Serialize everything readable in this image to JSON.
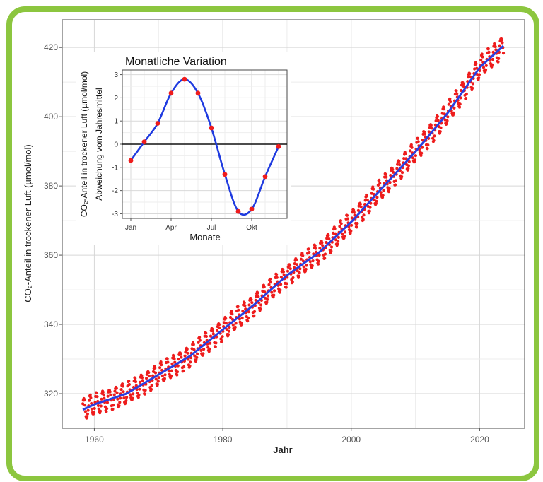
{
  "chart_data": [
    {
      "type": "line",
      "xlabel": "Jahr",
      "ylabel": "CO₂-Anteil in trockener Luft (µmol/mol)",
      "xlim": [
        1955,
        2027
      ],
      "ylim": [
        310,
        428
      ],
      "x_ticks": [
        1960,
        1980,
        2000,
        2020
      ],
      "y_ticks": [
        320,
        340,
        360,
        380,
        400,
        420
      ],
      "grid": true,
      "trend_anchors": {
        "x": [
          1958,
          1960,
          1965,
          1970,
          1975,
          1980,
          1985,
          1990,
          1995,
          2000,
          2005,
          2010,
          2015,
          2020,
          2024
        ],
        "y": [
          315.2,
          316.9,
          320.0,
          325.5,
          331.0,
          338.5,
          345.9,
          354.2,
          360.8,
          369.6,
          379.8,
          389.9,
          401.0,
          414.2,
          421.0
        ]
      },
      "seasonal_amplitude": 3.0,
      "series": [
        {
          "kind": "monthly-points",
          "color": "#ee1c1c"
        },
        {
          "kind": "trend-line",
          "color": "#2a3ee0"
        }
      ]
    },
    {
      "type": "line",
      "title": "Monatliche Variation",
      "xlabel": "Monate",
      "ylabel_line1": "CO₂-Anteil in trockener Luft (µmol/mol)",
      "ylabel_line2": "Abweichung vom Jahresmittel",
      "x_ticks": [
        "Jan",
        "Apr",
        "Jul",
        "Okt"
      ],
      "y_ticks": [
        -3,
        -2,
        -1,
        0,
        1,
        2,
        3
      ],
      "ylim": [
        -3.2,
        3.2
      ],
      "months": [
        1,
        2,
        3,
        4,
        5,
        6,
        7,
        8,
        9,
        10,
        11,
        12
      ],
      "values": [
        -0.7,
        0.1,
        0.9,
        2.2,
        2.8,
        2.2,
        0.7,
        -1.3,
        -2.9,
        -2.8,
        -1.4,
        -0.1
      ],
      "series": [
        {
          "kind": "points",
          "color": "#ee1c1c"
        },
        {
          "kind": "smooth-line",
          "color": "#1f3be0"
        }
      ]
    }
  ]
}
